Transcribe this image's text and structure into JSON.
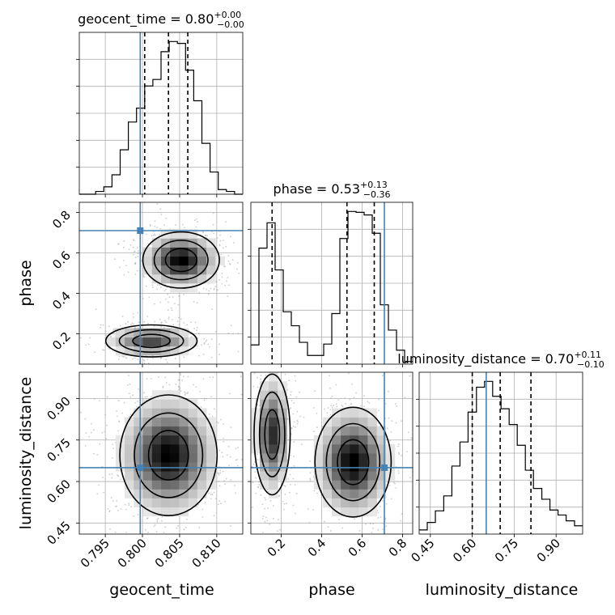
{
  "truth_color": "#4682b4",
  "chart_data": [
    {
      "type": "histogram",
      "parameter": "geocent_time",
      "title_name": "geocent_time = 0.80",
      "title_sup": "+0.00",
      "title_sub": "−0.00",
      "xlim": [
        0.7915,
        0.8135
      ],
      "bin_edges": [
        0.7915,
        0.7926,
        0.7937,
        0.7948,
        0.7959,
        0.797,
        0.7981,
        0.7992,
        0.8003,
        0.8014,
        0.8025,
        0.8036,
        0.8047,
        0.8058,
        0.8069,
        0.808,
        0.8091,
        0.8102,
        0.8113,
        0.8124,
        0.8135
      ],
      "counts": [
        0,
        0,
        3,
        8,
        21,
        48,
        78,
        93,
        117,
        124,
        154,
        165,
        163,
        134,
        101,
        55,
        24,
        5,
        3,
        0
      ],
      "quantiles": [
        0.8003,
        0.8035,
        0.8061
      ],
      "truth": 0.7997
    },
    {
      "type": "histogram",
      "parameter": "phase",
      "title_name": "phase = 0.53",
      "title_sup": "+0.13",
      "title_sub": "−0.36",
      "xlim": [
        0.05,
        0.85
      ],
      "bin_edges": [
        0.05,
        0.09,
        0.13,
        0.17,
        0.21,
        0.25,
        0.29,
        0.33,
        0.37,
        0.41,
        0.45,
        0.49,
        0.53,
        0.57,
        0.61,
        0.65,
        0.69,
        0.73,
        0.77,
        0.81,
        0.85
      ],
      "counts": [
        22,
        133,
        162,
        108,
        60,
        44,
        25,
        10,
        10,
        23,
        58,
        144,
        175,
        174,
        171,
        150,
        68,
        39,
        16,
        3
      ],
      "quantiles": [
        0.155,
        0.525,
        0.66
      ],
      "truth": 0.71
    },
    {
      "type": "histogram",
      "parameter": "luminosity_distance",
      "title_name": "luminosity_distance = 0.70",
      "title_sup": "+0.11",
      "title_sub": "−0.10",
      "xlim": [
        0.41,
        0.995
      ],
      "bin_edges": [
        0.41,
        0.439,
        0.468,
        0.498,
        0.527,
        0.556,
        0.585,
        0.615,
        0.644,
        0.673,
        0.703,
        0.732,
        0.761,
        0.79,
        0.819,
        0.849,
        0.878,
        0.907,
        0.936,
        0.966,
        0.995
      ],
      "counts": [
        5,
        14,
        28,
        46,
        82,
        111,
        147,
        177,
        184,
        166,
        151,
        132,
        107,
        77,
        55,
        42,
        29,
        23,
        16,
        10
      ],
      "quantiles": [
        0.6,
        0.7,
        0.81
      ],
      "truth": 0.65
    },
    {
      "type": "contour",
      "x": "geocent_time",
      "y": "phase",
      "xlim": [
        0.7915,
        0.8135
      ],
      "ylim": [
        0.05,
        0.85
      ],
      "modes": [
        {
          "center": [
            0.8052,
            0.565
          ],
          "spread": [
            0.0026,
            0.07
          ],
          "weight": 1.0
        },
        {
          "center": [
            0.8012,
            0.165
          ],
          "spread": [
            0.0031,
            0.04
          ],
          "weight": 0.75
        }
      ],
      "truth": [
        0.7997,
        0.71
      ]
    },
    {
      "type": "contour",
      "x": "geocent_time",
      "y": "luminosity_distance",
      "xlim": [
        0.7915,
        0.8135
      ],
      "ylim": [
        0.41,
        0.995
      ],
      "modes": [
        {
          "center": [
            0.8035,
            0.695
          ],
          "spread": [
            0.0033,
            0.11
          ],
          "weight": 1.0
        }
      ],
      "truth": [
        0.7997,
        0.65
      ]
    },
    {
      "type": "contour",
      "x": "phase",
      "y": "luminosity_distance",
      "xlim": [
        0.05,
        0.85
      ],
      "ylim": [
        0.41,
        0.995
      ],
      "modes": [
        {
          "center": [
            0.555,
            0.67
          ],
          "spread": [
            0.095,
            0.1
          ],
          "weight": 1.0
        },
        {
          "center": [
            0.155,
            0.77
          ],
          "spread": [
            0.045,
            0.11
          ],
          "weight": 0.85
        }
      ],
      "truth": [
        0.71,
        0.65
      ]
    }
  ],
  "axes": {
    "geocent_time": {
      "label": "geocent_time",
      "ticks": [
        0.795,
        0.8,
        0.805,
        0.81
      ],
      "tick_labels": [
        "0.795",
        "0.800",
        "0.805",
        "0.810"
      ]
    },
    "phase": {
      "label": "phase",
      "ticks": [
        0.2,
        0.4,
        0.6,
        0.8
      ],
      "tick_labels": [
        "0.2",
        "0.4",
        "0.6",
        "0.8"
      ]
    },
    "luminosity_distance": {
      "label": "luminosity_distance",
      "ticks": [
        0.45,
        0.6,
        0.75,
        0.9
      ],
      "tick_labels": [
        "0.45",
        "0.60",
        "0.75",
        "0.90"
      ]
    }
  }
}
